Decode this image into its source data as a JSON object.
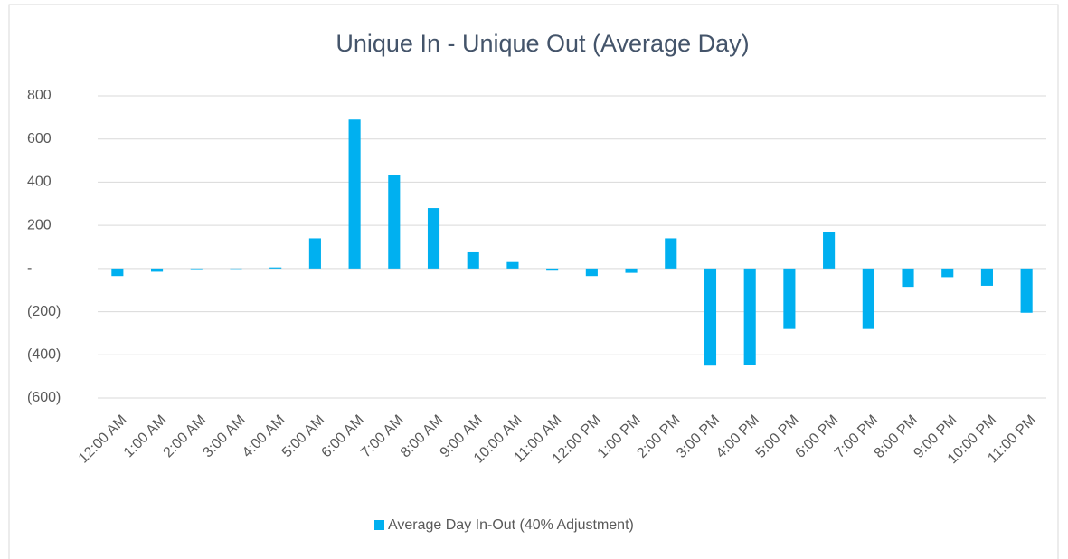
{
  "chart_data": {
    "type": "bar",
    "title": "Unique In - Unique Out (Average Day)",
    "categories": [
      "12:00 AM",
      "1:00 AM",
      "2:00 AM",
      "3:00 AM",
      "4:00 AM",
      "5:00 AM",
      "6:00 AM",
      "7:00 AM",
      "8:00 AM",
      "9:00 AM",
      "10:00 AM",
      "11:00 AM",
      "12:00 PM",
      "1:00 PM",
      "2:00 PM",
      "3:00 PM",
      "4:00 PM",
      "5:00 PM",
      "6:00 PM",
      "7:00 PM",
      "8:00 PM",
      "9:00 PM",
      "10:00 PM",
      "11:00 PM"
    ],
    "series": [
      {
        "name": "Average Day In-Out (40% Adjustment)",
        "color": "#00b0f0",
        "values": [
          -35,
          -15,
          -3,
          -2,
          5,
          140,
          690,
          435,
          280,
          75,
          30,
          -10,
          -35,
          -20,
          140,
          -450,
          -445,
          -280,
          170,
          -280,
          -85,
          -40,
          -80,
          -205
        ]
      }
    ],
    "ylim": [
      -600,
      800
    ],
    "yticks": [
      {
        "value": -600,
        "label": "(600)"
      },
      {
        "value": -400,
        "label": "(400)"
      },
      {
        "value": -200,
        "label": "(200)"
      },
      {
        "value": 0,
        "label": "-"
      },
      200,
      400,
      600,
      800
    ],
    "grid": true,
    "legend": "bottom"
  }
}
